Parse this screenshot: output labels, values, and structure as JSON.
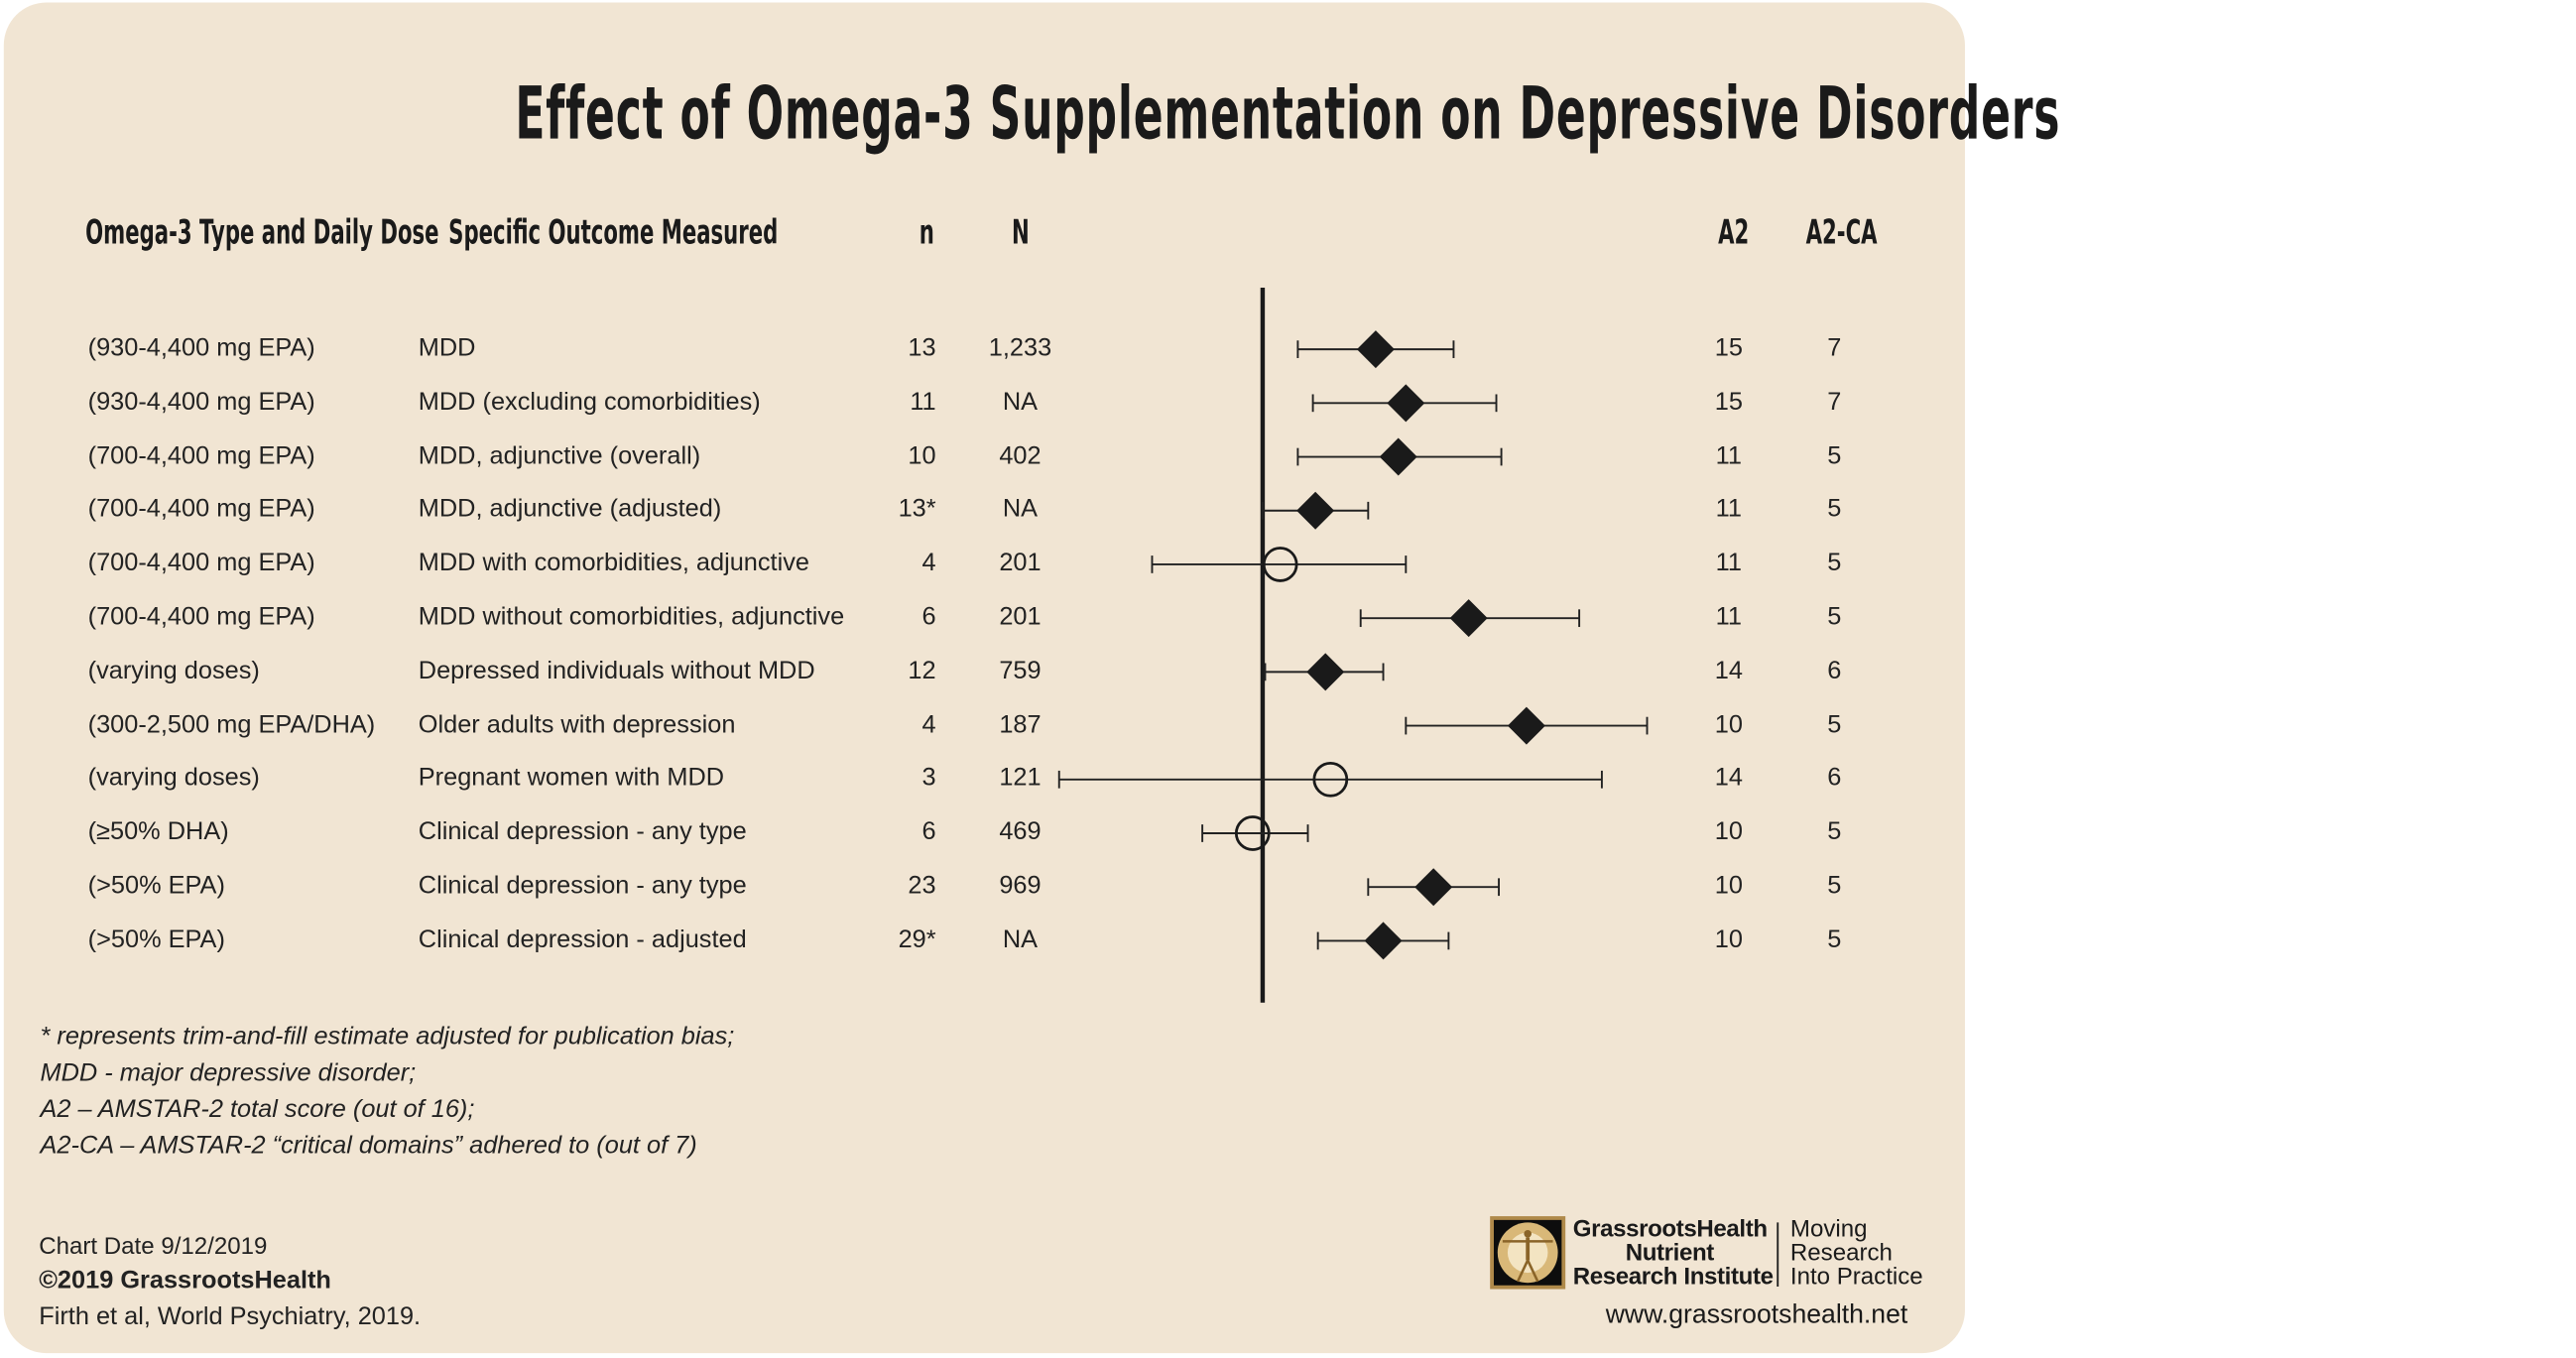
{
  "title": "Effect of Omega-3 Supplementation on Depressive Disorders",
  "headers": {
    "dose": "Omega-3 Type and Daily Dose",
    "outcome": "Specific Outcome Measured",
    "n": "n",
    "N": "N",
    "a2": "A2",
    "a2ca": "A2-CA"
  },
  "chart_data": {
    "type": "forest",
    "title": "Effect of Omega-3 Supplementation on Depressive Disorders",
    "null_line": 0,
    "axis_labels_shown": false,
    "marker_legend": {
      "diamond": "filled diamond",
      "circle": "open circle"
    },
    "rows": [
      {
        "dose": "(930-4,400 mg EPA)",
        "outcome": "MDD",
        "n": "13",
        "N": "1,233",
        "a2": "15",
        "a2ca": "7",
        "estimate": 0.45,
        "ci": [
          0.14,
          0.76
        ],
        "marker": "diamond"
      },
      {
        "dose": "(930-4,400 mg EPA)",
        "outcome": "MDD (excluding comorbidities)",
        "n": "11",
        "N": "NA",
        "a2": "15",
        "a2ca": "7",
        "estimate": 0.57,
        "ci": [
          0.2,
          0.93
        ],
        "marker": "diamond"
      },
      {
        "dose": "(700-4,400 mg EPA)",
        "outcome": "MDD, adjunctive (overall)",
        "n": "10",
        "N": "402",
        "a2": "11",
        "a2ca": "5",
        "estimate": 0.54,
        "ci": [
          0.14,
          0.95
        ],
        "marker": "diamond"
      },
      {
        "dose": "(700-4,400 mg EPA)",
        "outcome": "MDD, adjunctive  (adjusted)",
        "n": "13*",
        "N": "NA",
        "a2": "11",
        "a2ca": "5",
        "estimate": 0.21,
        "ci": [
          0.0,
          0.42
        ],
        "marker": "diamond"
      },
      {
        "dose": "(700-4,400 mg EPA)",
        "outcome": "MDD with comorbidities, adjunctive",
        "n": "4",
        "N": "201",
        "a2": "11",
        "a2ca": "5",
        "estimate": 0.07,
        "ci": [
          -0.44,
          0.57
        ],
        "marker": "circle"
      },
      {
        "dose": "(700-4,400 mg EPA)",
        "outcome": "MDD without comorbidities, adjunctive",
        "n": "6",
        "N": "201",
        "a2": "11",
        "a2ca": "5",
        "estimate": 0.82,
        "ci": [
          0.39,
          1.26
        ],
        "marker": "diamond"
      },
      {
        "dose": "(varying doses)",
        "outcome": "Depressed individuals without MDD",
        "n": "12",
        "N": "759",
        "a2": "14",
        "a2ca": "6",
        "estimate": 0.25,
        "ci": [
          0.01,
          0.48
        ],
        "marker": "diamond"
      },
      {
        "dose": "(300-2,500 mg EPA/DHA)",
        "outcome": "Older adults with depression",
        "n": "4",
        "N": "187",
        "a2": "10",
        "a2ca": "5",
        "estimate": 1.05,
        "ci": [
          0.57,
          1.53
        ],
        "marker": "diamond"
      },
      {
        "dose": "(varying doses)",
        "outcome": "Pregnant women with MDD",
        "n": "3",
        "N": "121",
        "a2": "14",
        "a2ca": "6",
        "estimate": 0.27,
        "ci": [
          -0.81,
          1.35
        ],
        "marker": "circle"
      },
      {
        "dose": "(≥50% DHA)",
        "outcome": "Clinical depression - any type",
        "n": "6",
        "N": "469",
        "a2": "10",
        "a2ca": "5",
        "estimate": -0.04,
        "ci": [
          -0.24,
          0.18
        ],
        "marker": "circle"
      },
      {
        "dose": "(>50% EPA)",
        "outcome": "Clinical depression - any type",
        "n": "23",
        "N": "969",
        "a2": "10",
        "a2ca": "5",
        "estimate": 0.68,
        "ci": [
          0.42,
          0.94
        ],
        "marker": "diamond"
      },
      {
        "dose": "(>50% EPA)",
        "outcome": "Clinical depression - adjusted",
        "n": "29*",
        "N": "NA",
        "a2": "10",
        "a2ca": "5",
        "estimate": 0.48,
        "ci": [
          0.22,
          0.74
        ],
        "marker": "diamond"
      }
    ]
  },
  "footnotes": [
    "* represents trim-and-fill estimate adjusted for publication bias;",
    "MDD - major depressive disorder;",
    "A2 – AMSTAR-2 total score (out of 16);",
    "A2-CA – AMSTAR-2 “critical domains” adhered to (out of 7)"
  ],
  "footer": {
    "date": "Chart Date 9/12/2019",
    "copyright": "©2019 GrassrootsHealth",
    "citation": "Firth et al, World Psychiatry, 2019."
  },
  "logo": {
    "line1": "GrassrootsHealth",
    "line2": "Nutrient",
    "line3": "Research Institute",
    "tag1": "Moving",
    "tag2": "Research",
    "tag3": "Into Practice",
    "url": "www.grassrootshealth.net"
  },
  "colors": {
    "background": "#f1e5d3",
    "ink": "#1a1a1a"
  }
}
